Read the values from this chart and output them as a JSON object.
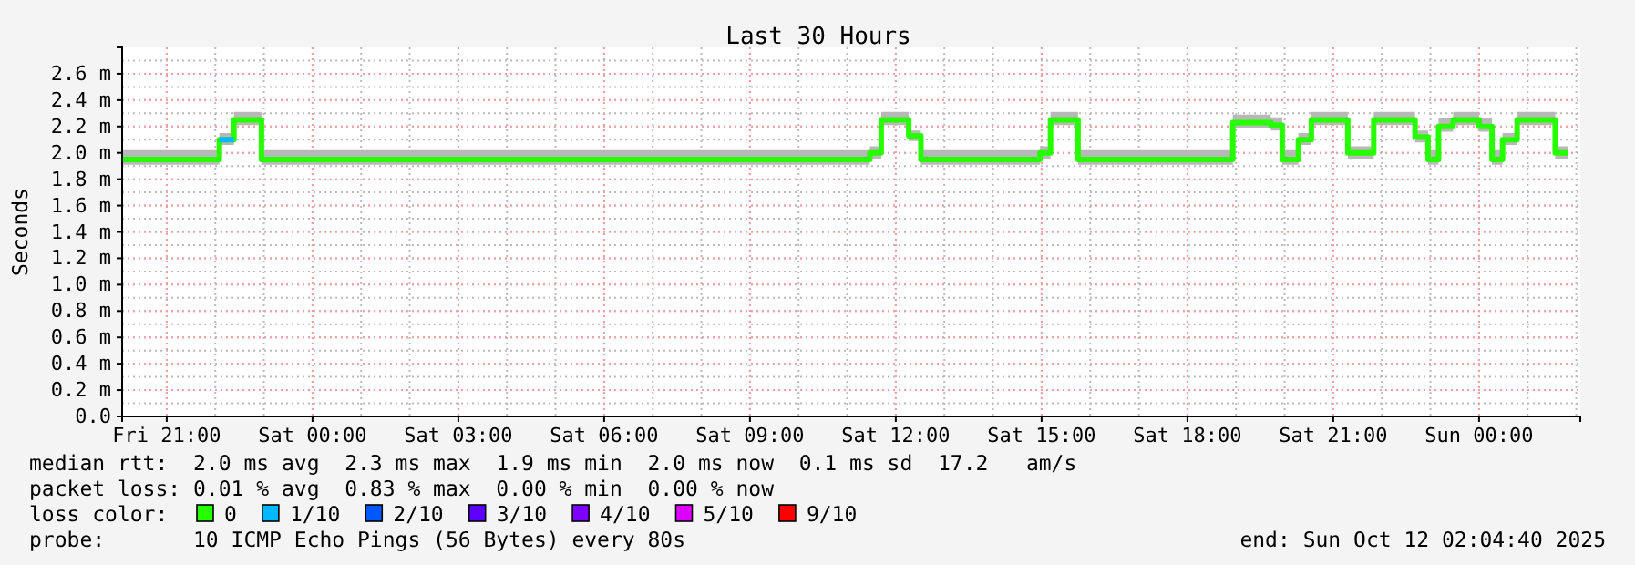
{
  "chart_data": {
    "type": "step",
    "title": "Last 30 Hours",
    "ylabel": "Seconds",
    "x": [
      "2025-10-10T20:05",
      "2025-10-10T22:05",
      "2025-10-10T22:23",
      "2025-10-10T22:57",
      "2025-10-11T11:28",
      "2025-10-11T11:42",
      "2025-10-11T12:16",
      "2025-10-11T12:31",
      "2025-10-11T14:58",
      "2025-10-11T15:11",
      "2025-10-11T15:45",
      "2025-10-11T18:56",
      "2025-10-11T19:43",
      "2025-10-11T19:57",
      "2025-10-11T20:17",
      "2025-10-11T20:33",
      "2025-10-11T21:18",
      "2025-10-11T21:50",
      "2025-10-11T22:41",
      "2025-10-11T22:57",
      "2025-10-11T23:10",
      "2025-10-11T23:28",
      "2025-10-12T00:00",
      "2025-10-12T00:16",
      "2025-10-12T00:29",
      "2025-10-12T00:47",
      "2025-10-12T01:34",
      "2025-10-12T01:50"
    ],
    "series": [
      {
        "name": "0",
        "color": "#26ff00",
        "values": [
          1.95,
          2.1,
          2.25,
          1.95,
          2.0,
          2.25,
          2.13,
          1.95,
          2.0,
          2.25,
          1.95,
          2.23,
          2.21,
          1.95,
          2.1,
          2.25,
          2.0,
          2.25,
          2.12,
          1.95,
          2.2,
          2.25,
          2.2,
          1.95,
          2.1,
          2.25,
          2.0,
          2.0
        ],
        "lower": [
          1.91,
          2.06,
          2.21,
          1.91,
          1.95,
          2.21,
          2.09,
          1.91,
          1.95,
          2.21,
          1.91,
          2.19,
          2.17,
          1.91,
          2.06,
          2.21,
          1.95,
          2.21,
          2.08,
          1.91,
          2.16,
          2.21,
          2.16,
          1.91,
          2.06,
          2.21,
          1.95,
          1.95
        ],
        "upper": [
          2.02,
          2.15,
          2.31,
          2.02,
          2.05,
          2.31,
          2.17,
          2.02,
          2.05,
          2.31,
          2.02,
          2.29,
          2.27,
          2.02,
          2.15,
          2.31,
          2.05,
          2.31,
          2.17,
          2.02,
          2.26,
          2.31,
          2.26,
          2.02,
          2.15,
          2.31,
          2.05,
          2.05
        ]
      },
      {
        "name": "1/10",
        "color": "#00b8ff",
        "x": [
          "2025-10-10T22:05",
          "2025-10-10T22:23"
        ],
        "values": [
          2.1,
          2.1
        ]
      },
      {
        "name": "2/10",
        "color": "#0059ff",
        "values": [
          null,
          null,
          null,
          null,
          null,
          null,
          null,
          null,
          null,
          null,
          null,
          null,
          null,
          null,
          null,
          null,
          null,
          null,
          null,
          null,
          null,
          null,
          null,
          null,
          null,
          null,
          null,
          null
        ]
      },
      {
        "name": "3/10",
        "color": "#5e00ff",
        "values": [
          null,
          null,
          null,
          null,
          null,
          null,
          null,
          null,
          null,
          null,
          null,
          null,
          null,
          null,
          null,
          null,
          null,
          null,
          null,
          null,
          null,
          null,
          null,
          null,
          null,
          null,
          null,
          null
        ]
      },
      {
        "name": "4/10",
        "color": "#7e00ff",
        "values": [
          null,
          null,
          null,
          null,
          null,
          null,
          null,
          null,
          null,
          null,
          null,
          null,
          null,
          null,
          null,
          null,
          null,
          null,
          null,
          null,
          null,
          null,
          null,
          null,
          null,
          null,
          null,
          null
        ]
      },
      {
        "name": "5/10",
        "color": "#dd00ff",
        "values": [
          null,
          null,
          null,
          null,
          null,
          null,
          null,
          null,
          null,
          null,
          null,
          null,
          null,
          null,
          null,
          null,
          null,
          null,
          null,
          null,
          null,
          null,
          null,
          null,
          null,
          null,
          null,
          null
        ]
      },
      {
        "name": "9/10",
        "color": "#ff0000",
        "values": [
          null,
          null,
          null,
          null,
          null,
          null,
          null,
          null,
          null,
          null,
          null,
          null,
          null,
          null,
          null,
          null,
          null,
          null,
          null,
          null,
          null,
          null,
          null,
          null,
          null,
          null,
          null,
          null
        ]
      }
    ],
    "legend": "bottom",
    "legend_title": "loss color:",
    "grid": true,
    "xlim": [
      "2025-10-10T20:05",
      "2025-10-12T02:05"
    ],
    "xticks": [
      {
        "value": "2025-10-10T21:00",
        "label": "Fri 21:00"
      },
      {
        "value": "2025-10-11T00:00",
        "label": "Sat 00:00"
      },
      {
        "value": "2025-10-11T03:00",
        "label": "Sat 03:00"
      },
      {
        "value": "2025-10-11T06:00",
        "label": "Sat 06:00"
      },
      {
        "value": "2025-10-11T09:00",
        "label": "Sat 09:00"
      },
      {
        "value": "2025-10-11T12:00",
        "label": "Sat 12:00"
      },
      {
        "value": "2025-10-11T15:00",
        "label": "Sat 15:00"
      },
      {
        "value": "2025-10-11T18:00",
        "label": "Sat 18:00"
      },
      {
        "value": "2025-10-11T21:00",
        "label": "Sat 21:00"
      },
      {
        "value": "2025-10-12T00:00",
        "label": "Sun 00:00"
      }
    ],
    "ylim": [
      0,
      2.8
    ],
    "yticks": [
      {
        "value": 0,
        "label": "0.0"
      },
      {
        "value": 0.2,
        "label": "0.2 m"
      },
      {
        "value": 0.4,
        "label": "0.4 m"
      },
      {
        "value": 0.6,
        "label": "0.6 m"
      },
      {
        "value": 0.8,
        "label": "0.8 m"
      },
      {
        "value": 1.0,
        "label": "1.0 m"
      },
      {
        "value": 1.2,
        "label": "1.2 m"
      },
      {
        "value": 1.4,
        "label": "1.4 m"
      },
      {
        "value": 1.6,
        "label": "1.6 m"
      },
      {
        "value": 1.8,
        "label": "1.8 m"
      },
      {
        "value": 2.0,
        "label": "2.0 m"
      },
      {
        "value": 2.2,
        "label": "2.2 m"
      },
      {
        "value": 2.4,
        "label": "2.4 m"
      },
      {
        "value": 2.6,
        "label": "2.6 m"
      }
    ],
    "annotations": [
      "median rtt:  2.0 ms avg  2.3 ms max  1.9 ms min  2.0 ms now  0.1 ms sd  17.2   am/s",
      "packet loss: 0.01 % avg  0.83 % max  0.00 % min  0.00 % now",
      "probe:       10 ICMP Echo Pings (56 Bytes) every 80s",
      "end: Sun Oct 12 02:04:40 2025"
    ]
  }
}
